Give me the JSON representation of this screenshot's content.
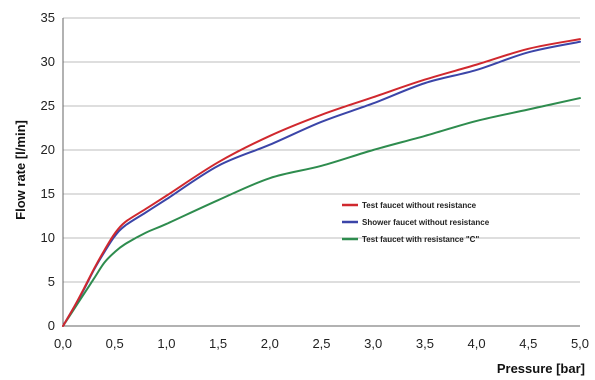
{
  "chart_data": {
    "type": "line",
    "xlabel": "Pressure [bar]",
    "ylabel": "Flow rate [l/min]",
    "xlim": [
      0,
      5
    ],
    "ylim": [
      0,
      35
    ],
    "x_ticks": [
      0,
      0.5,
      1,
      1.5,
      2,
      2.5,
      3,
      3.5,
      4,
      4.5,
      5
    ],
    "x_tick_labels": [
      "0,0",
      "0,5",
      "1,0",
      "1,5",
      "2,0",
      "2,5",
      "3,0",
      "3,5",
      "4,0",
      "4,5",
      "5,0"
    ],
    "y_ticks": [
      0,
      5,
      10,
      15,
      20,
      25,
      30,
      35
    ],
    "y_tick_labels": [
      "0",
      "5",
      "10",
      "15",
      "20",
      "25",
      "30",
      "35"
    ],
    "grid": "horizontal",
    "legend_position": "center-right",
    "series": [
      {
        "name": "Test faucet without resistance",
        "color": "#d0282e",
        "x": [
          0,
          0.1,
          0.2,
          0.3,
          0.4,
          0.5,
          0.6,
          0.8,
          1.0,
          1.5,
          2.0,
          2.5,
          3.0,
          3.5,
          4.0,
          4.5,
          5.0
        ],
        "y": [
          0,
          2.0,
          4.2,
          6.5,
          8.6,
          10.5,
          11.8,
          13.3,
          14.8,
          18.6,
          21.6,
          24.0,
          26.0,
          28.0,
          29.7,
          31.5,
          32.6
        ]
      },
      {
        "name": "Shower faucet without resistance",
        "color": "#3b45a8",
        "x": [
          0,
          0.1,
          0.2,
          0.3,
          0.4,
          0.5,
          0.6,
          0.8,
          1.0,
          1.5,
          2.0,
          2.5,
          3.0,
          3.5,
          4.0,
          4.5,
          5.0
        ],
        "y": [
          0,
          2.0,
          4.1,
          6.4,
          8.4,
          10.2,
          11.4,
          12.9,
          14.4,
          18.2,
          20.6,
          23.2,
          25.3,
          27.6,
          29.1,
          31.1,
          32.3
        ]
      },
      {
        "name": "Test faucet with resistance \"C\"",
        "color": "#2e8c4e",
        "x": [
          0,
          0.1,
          0.2,
          0.3,
          0.4,
          0.5,
          0.6,
          0.8,
          1.0,
          1.5,
          2.0,
          2.5,
          3.0,
          3.5,
          4.0,
          4.5,
          5.0
        ],
        "y": [
          0,
          1.8,
          3.6,
          5.4,
          7.2,
          8.4,
          9.3,
          10.6,
          11.6,
          14.3,
          16.8,
          18.2,
          20.0,
          21.6,
          23.3,
          24.6,
          25.9
        ]
      }
    ]
  }
}
